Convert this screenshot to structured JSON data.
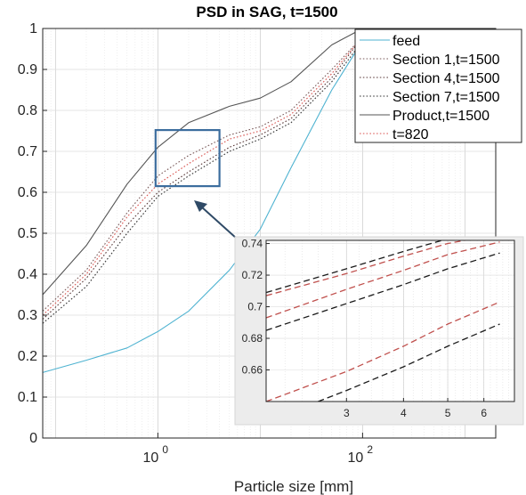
{
  "chart_data": {
    "type": "line",
    "title": "PSD in SAG, t=1500",
    "xlabel": "Particle size [mm]",
    "ylabel": "",
    "xscale": "log",
    "xlim": [
      0.075,
      2000
    ],
    "ylim": [
      0,
      1
    ],
    "x_ticks": [
      1,
      100
    ],
    "x_tick_labels": [
      "10",
      "10"
    ],
    "x_tick_exponents": [
      "0",
      "2"
    ],
    "y_ticks": [
      0,
      0.1,
      0.2,
      0.3,
      0.4,
      0.5,
      0.6,
      0.7,
      0.8,
      0.9,
      1
    ],
    "y_tick_labels": [
      "0",
      "0.1",
      "0.2",
      "0.3",
      "0.4",
      "0.5",
      "0.6",
      "0.7",
      "0.8",
      "0.9",
      "1"
    ],
    "grid": true,
    "legend_position": "top-right",
    "series": [
      {
        "name": "feed",
        "color": "#4fb3d1",
        "style": "solid",
        "x": [
          0.075,
          0.2,
          0.5,
          1,
          2,
          5,
          10,
          20,
          50,
          100,
          150,
          300,
          2000
        ],
        "y": [
          0.16,
          0.19,
          0.22,
          0.26,
          0.31,
          0.41,
          0.51,
          0.66,
          0.85,
          0.97,
          1.0,
          1.0,
          1.0
        ]
      },
      {
        "name": "Section 1,t=1500",
        "color": "#7a5a5a",
        "style": "dotted",
        "x": [
          0.075,
          0.2,
          0.5,
          1,
          2,
          5,
          10,
          20,
          50,
          100,
          150,
          300,
          2000
        ],
        "y": [
          0.31,
          0.41,
          0.55,
          0.64,
          0.69,
          0.74,
          0.76,
          0.8,
          0.9,
          0.98,
          1.0,
          1.0,
          1.0
        ]
      },
      {
        "name": "Section 4,t=1500",
        "color": "#5a3a3a",
        "style": "dotted",
        "x": [
          0.075,
          0.2,
          0.5,
          1,
          2,
          5,
          10,
          20,
          50,
          100,
          150,
          300,
          2000
        ],
        "y": [
          0.29,
          0.39,
          0.52,
          0.6,
          0.65,
          0.71,
          0.74,
          0.78,
          0.88,
          0.98,
          1.0,
          1.0,
          1.0
        ]
      },
      {
        "name": "Section 7,t=1500",
        "color": "#333333",
        "style": "dotted",
        "x": [
          0.075,
          0.2,
          0.5,
          1,
          2,
          5,
          10,
          20,
          50,
          100,
          150,
          300,
          2000
        ],
        "y": [
          0.28,
          0.37,
          0.5,
          0.59,
          0.64,
          0.7,
          0.73,
          0.77,
          0.87,
          0.97,
          1.0,
          1.0,
          1.0
        ]
      },
      {
        "name": "Product,t=1500",
        "color": "#555555",
        "style": "solid",
        "x": [
          0.075,
          0.2,
          0.5,
          1,
          2,
          5,
          10,
          20,
          50,
          100,
          150,
          300,
          2000
        ],
        "y": [
          0.35,
          0.47,
          0.62,
          0.71,
          0.77,
          0.81,
          0.83,
          0.87,
          0.96,
          1.0,
          1.0,
          1.0,
          1.0
        ]
      },
      {
        "name": "t=820",
        "color": "#d9534f",
        "style": "dotted",
        "x": [
          0.075,
          0.2,
          0.5,
          1,
          2,
          5,
          10,
          20,
          50,
          100,
          150,
          300,
          2000
        ],
        "y": [
          0.3,
          0.4,
          0.54,
          0.62,
          0.67,
          0.73,
          0.75,
          0.79,
          0.89,
          0.98,
          1.0,
          1.0,
          1.0
        ]
      }
    ],
    "inset": {
      "xlim": [
        2,
        7
      ],
      "ylim": [
        0.64,
        0.742
      ],
      "x_ticks": [
        3,
        4,
        5,
        6
      ],
      "x_tick_labels": [
        "3",
        "4",
        "5",
        "6"
      ],
      "y_ticks": [
        0.66,
        0.68,
        0.7,
        0.72,
        0.74
      ],
      "y_tick_labels": [
        "0.66",
        "0.68",
        "0.7",
        "0.72",
        "0.74"
      ],
      "lines": [
        {
          "color": "#1a1a1a",
          "style": "dashed",
          "x": [
            2,
            3,
            4,
            5,
            6.5
          ],
          "y": [
            0.709,
            0.724,
            0.735,
            0.743,
            0.749
          ]
        },
        {
          "color": "#c0504d",
          "style": "dashed",
          "x": [
            2,
            3,
            4,
            5,
            6.5
          ],
          "y": [
            0.707,
            0.721,
            0.732,
            0.74,
            0.746
          ]
        },
        {
          "color": "#c0504d",
          "style": "dashed",
          "x": [
            2,
            3,
            4,
            5,
            6.5
          ],
          "y": [
            0.693,
            0.711,
            0.723,
            0.733,
            0.741
          ]
        },
        {
          "color": "#1a1a1a",
          "style": "dashed",
          "x": [
            2,
            3,
            4,
            5,
            6.5
          ],
          "y": [
            0.685,
            0.702,
            0.714,
            0.724,
            0.734
          ]
        },
        {
          "color": "#c0504d",
          "style": "dashed",
          "x": [
            2,
            3,
            4,
            5,
            6.5
          ],
          "y": [
            0.64,
            0.659,
            0.675,
            0.689,
            0.703
          ]
        },
        {
          "color": "#1a1a1a",
          "style": "dashed",
          "x": [
            2.6,
            3,
            4,
            5,
            6.5
          ],
          "y": [
            0.64,
            0.647,
            0.662,
            0.675,
            0.689
          ]
        }
      ]
    },
    "zoom_box": {
      "x": [
        0.95,
        4
      ],
      "y": [
        0.615,
        0.752
      ],
      "color": "#3c6d9e"
    }
  }
}
